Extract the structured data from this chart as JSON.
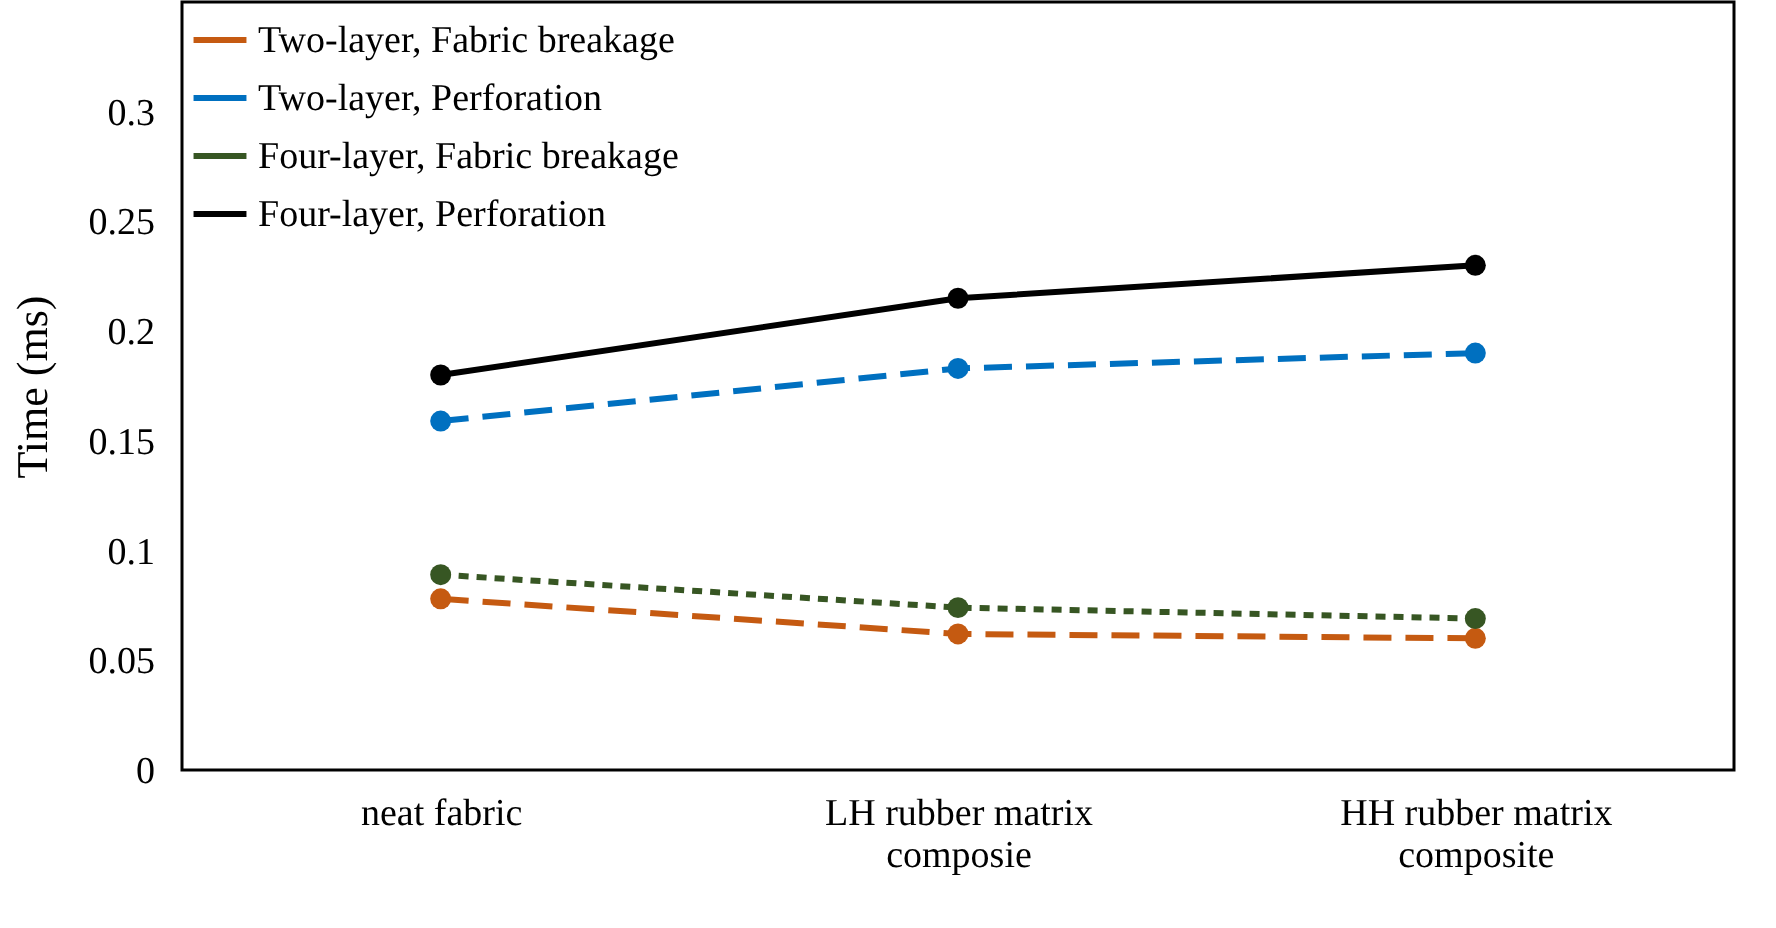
{
  "chart_data": {
    "type": "line",
    "ylabel": "Time (ms)",
    "categories": [
      "neat fabric",
      "LH rubber matrix composie",
      "HH rubber matrix composite"
    ],
    "series": [
      {
        "name": "Two-layer, Fabric breakage",
        "color": "#c55a11",
        "line_style": "dashed",
        "values": [
          0.078,
          0.062,
          0.06
        ]
      },
      {
        "name": "Two-layer, Perforation",
        "color": "#0070c0",
        "line_style": "dashed",
        "values": [
          0.159,
          0.183,
          0.19
        ]
      },
      {
        "name": "Four-layer, Fabric breakage",
        "color": "#375623",
        "line_style": "dotted",
        "values": [
          0.089,
          0.074,
          0.069
        ]
      },
      {
        "name": "Four-layer, Perforation",
        "color": "#000000",
        "line_style": "solid",
        "values": [
          0.18,
          0.215,
          0.23
        ]
      }
    ],
    "ylim": [
      0,
      0.35
    ],
    "yticks": [
      0,
      0.05,
      0.1,
      0.15,
      0.2,
      0.25,
      0.3
    ],
    "grid": false,
    "legend": "top left",
    "marker": "circle"
  }
}
